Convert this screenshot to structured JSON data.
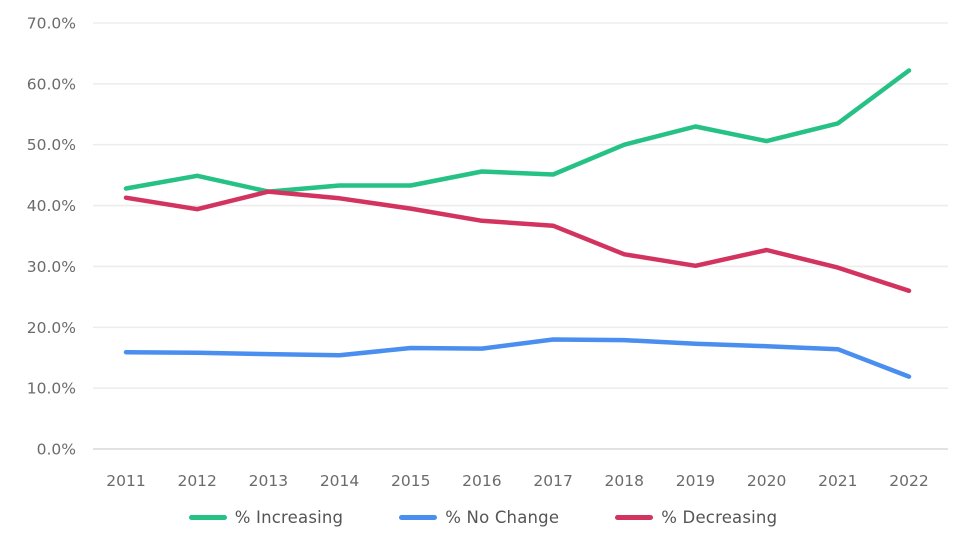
{
  "chart_data": {
    "type": "line",
    "title": "",
    "xlabel": "",
    "ylabel": "",
    "categories": [
      "2011",
      "2012",
      "2013",
      "2014",
      "2015",
      "2016",
      "2017",
      "2018",
      "2019",
      "2020",
      "2021",
      "2022"
    ],
    "series": [
      {
        "name": "% Increasing",
        "color": "#25c185",
        "values": [
          42.8,
          44.9,
          42.3,
          43.3,
          43.3,
          45.6,
          45.1,
          50.0,
          53.0,
          50.6,
          53.5,
          62.2
        ]
      },
      {
        "name": "% No Change",
        "color": "#4a8ef0",
        "values": [
          15.9,
          15.8,
          15.6,
          15.4,
          16.6,
          16.5,
          18.0,
          17.9,
          17.3,
          16.9,
          16.4,
          11.9
        ]
      },
      {
        "name": "% Decreasing",
        "color": "#d2345f",
        "values": [
          41.3,
          39.4,
          42.3,
          41.2,
          39.5,
          37.5,
          36.7,
          32.0,
          30.1,
          32.7,
          29.8,
          26.0
        ]
      }
    ],
    "ylim": [
      0,
      70
    ],
    "ytick_step": 10,
    "ytick_labels": [
      "0.0%",
      "10.0%",
      "20.0%",
      "30.0%",
      "40.0%",
      "50.0%",
      "60.0%",
      "70.0%"
    ],
    "grid": true,
    "legend_position": "bottom"
  },
  "style": {
    "axis_text_color": "#6b6b6b",
    "legend_text_color": "#555555",
    "gridline_color": "#ededed",
    "baseline_color": "#d9d9d9",
    "background": "#ffffff",
    "line_width": 4.5
  }
}
